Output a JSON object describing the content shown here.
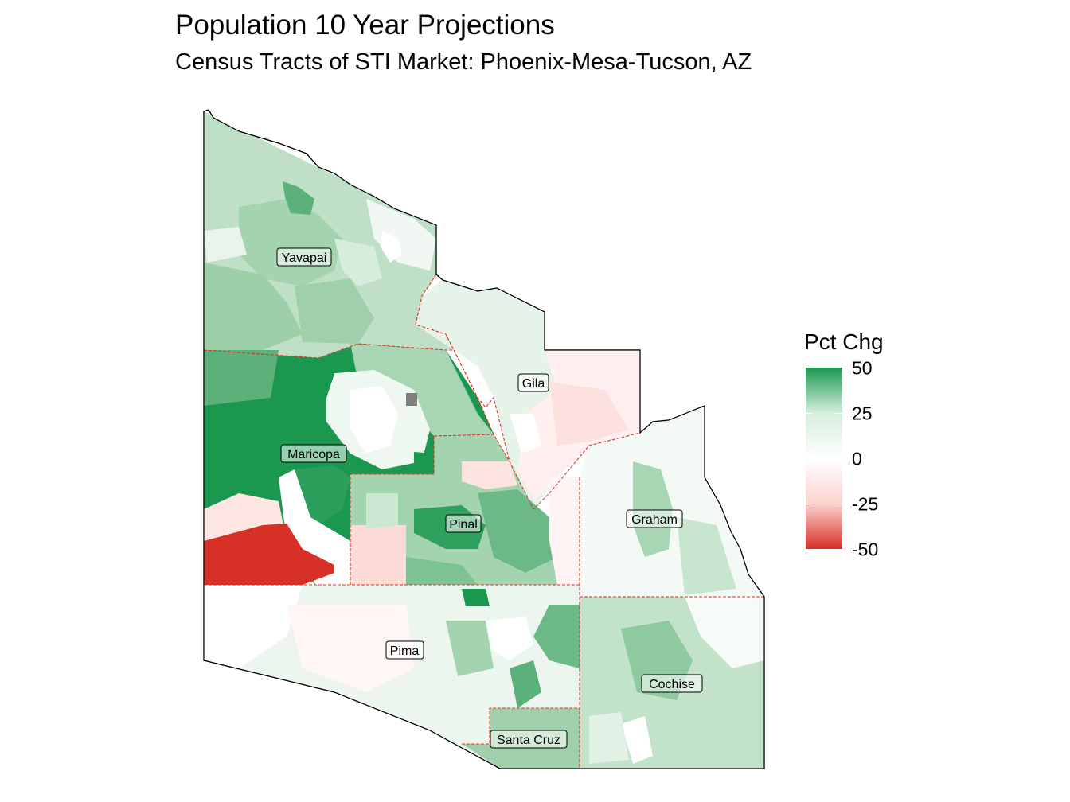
{
  "title": "Population 10 Year Projections",
  "subtitle": "Census Tracts of STI Market: Phoenix-Mesa-Tucson, AZ",
  "legend": {
    "title": "Pct Chg",
    "breaks": [
      "50",
      "25",
      "0",
      "-25",
      "-50"
    ],
    "colors": {
      "high": "#1a9850",
      "mid": "#ffffff",
      "low": "#d73027",
      "na": "#7f7f7f"
    }
  },
  "counties": [
    {
      "name": "Yavapai"
    },
    {
      "name": "Gila"
    },
    {
      "name": "Maricopa"
    },
    {
      "name": "Pinal"
    },
    {
      "name": "Graham"
    },
    {
      "name": "Pima"
    },
    {
      "name": "Cochise"
    },
    {
      "name": "Santa Cruz"
    }
  ]
}
